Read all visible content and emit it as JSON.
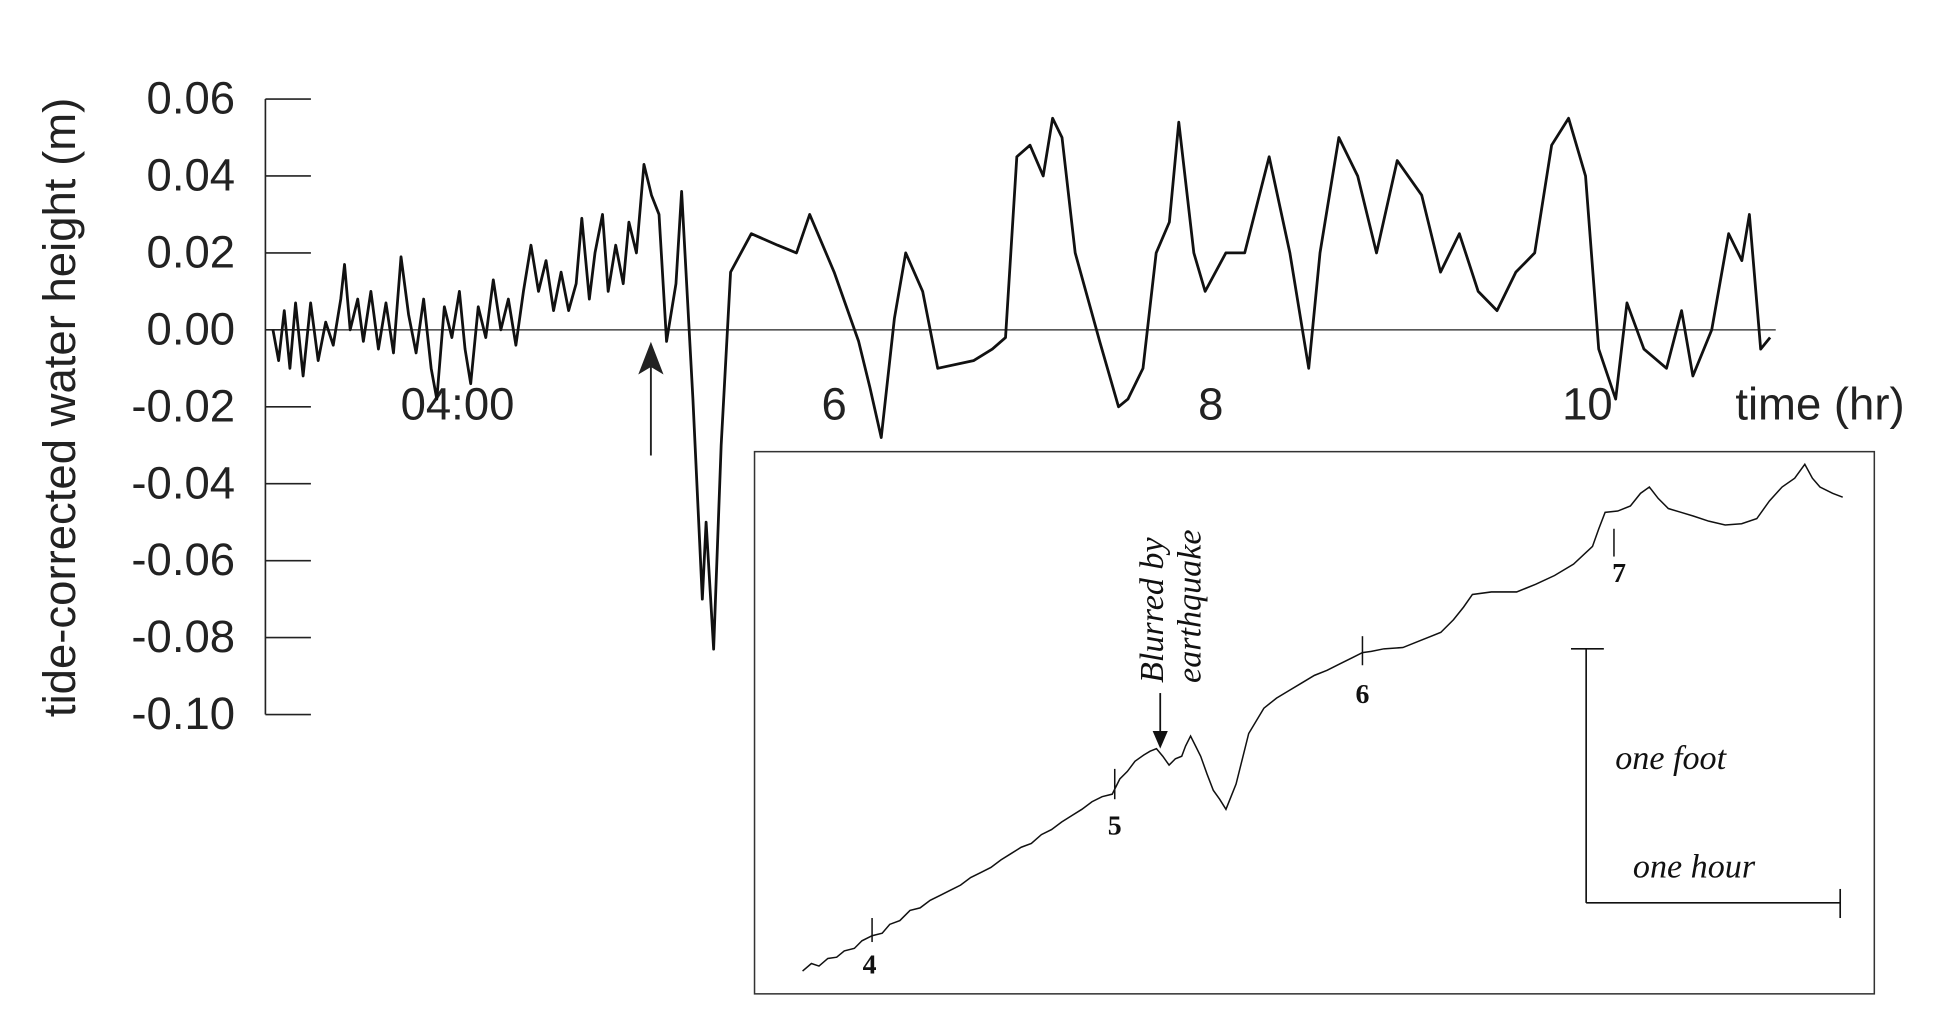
{
  "chart_data": {
    "type": "line",
    "y_label": "tide-corrected water height (m)",
    "x_label": "time (hr)",
    "color": "#111111",
    "xlim": [
      3,
      11
    ],
    "xticks": [
      {
        "value": 4,
        "label": "04:00"
      },
      6,
      8,
      10
    ],
    "ylim": [
      -0.1,
      0.06
    ],
    "yticks": [
      0.06,
      0.04,
      0.02,
      {
        "value": 0,
        "label": "0.00"
      },
      -0.02,
      -0.04,
      -0.06,
      -0.08,
      {
        "value": -0.1,
        "label": "-0.10"
      }
    ],
    "x": [
      3.02,
      3.05,
      3.08,
      3.11,
      3.14,
      3.18,
      3.22,
      3.26,
      3.3,
      3.34,
      3.38,
      3.4,
      3.43,
      3.47,
      3.5,
      3.54,
      3.58,
      3.62,
      3.66,
      3.7,
      3.74,
      3.78,
      3.82,
      3.86,
      3.89,
      3.93,
      3.97,
      4.01,
      4.04,
      4.07,
      4.11,
      4.15,
      4.19,
      4.23,
      4.27,
      4.31,
      4.35,
      4.39,
      4.43,
      4.47,
      4.51,
      4.55,
      4.59,
      4.63,
      4.66,
      4.7,
      4.73,
      4.77,
      4.8,
      4.84,
      4.88,
      4.91,
      4.95,
      4.99,
      5.03,
      5.07,
      5.11,
      5.16,
      5.19,
      5.25,
      5.3,
      5.32,
      5.36,
      5.4,
      5.45,
      5.56,
      5.7,
      5.8,
      5.87,
      6.0,
      6.13,
      6.19,
      6.25,
      6.32,
      6.38,
      6.47,
      6.55,
      6.74,
      6.84,
      6.91,
      6.97,
      7.04,
      7.11,
      7.16,
      7.21,
      7.28,
      7.41,
      7.51,
      7.56,
      7.64,
      7.71,
      7.78,
      7.83,
      7.91,
      7.97,
      8.08,
      8.18,
      8.31,
      8.42,
      8.52,
      8.58,
      8.68,
      8.78,
      8.88,
      8.99,
      9.12,
      9.22,
      9.32,
      9.42,
      9.52,
      9.62,
      9.72,
      9.81,
      9.9,
      9.99,
      10.06,
      10.15,
      10.21,
      10.3,
      10.42,
      10.5,
      10.56,
      10.66,
      10.75,
      10.82,
      10.86,
      10.92,
      10.97
    ],
    "values": [
      0.0,
      -0.008,
      0.005,
      -0.01,
      0.007,
      -0.012,
      0.007,
      -0.008,
      0.002,
      -0.004,
      0.008,
      0.017,
      0.0,
      0.008,
      -0.003,
      0.01,
      -0.005,
      0.007,
      -0.006,
      0.019,
      0.004,
      -0.006,
      0.008,
      -0.01,
      -0.018,
      0.006,
      -0.002,
      0.01,
      -0.005,
      -0.014,
      0.006,
      -0.002,
      0.013,
      0.0,
      0.008,
      -0.004,
      0.01,
      0.022,
      0.01,
      0.018,
      0.005,
      0.015,
      0.005,
      0.012,
      0.029,
      0.008,
      0.02,
      0.03,
      0.01,
      0.022,
      0.012,
      0.028,
      0.02,
      0.043,
      0.035,
      0.03,
      -0.003,
      0.012,
      0.036,
      -0.018,
      -0.07,
      -0.05,
      -0.083,
      -0.03,
      0.015,
      0.025,
      0.022,
      0.02,
      0.03,
      0.015,
      -0.003,
      -0.015,
      -0.028,
      0.003,
      0.02,
      0.01,
      -0.01,
      -0.008,
      -0.005,
      -0.002,
      0.045,
      0.048,
      0.04,
      0.055,
      0.05,
      0.02,
      -0.003,
      -0.02,
      -0.018,
      -0.01,
      0.02,
      0.028,
      0.054,
      0.02,
      0.01,
      0.02,
      0.02,
      0.045,
      0.02,
      -0.01,
      0.02,
      0.05,
      0.04,
      0.02,
      0.044,
      0.035,
      0.015,
      0.025,
      0.01,
      0.005,
      0.015,
      0.02,
      0.048,
      0.055,
      0.04,
      -0.005,
      -0.018,
      0.007,
      -0.005,
      -0.01,
      0.005,
      -0.012,
      0.0,
      0.025,
      0.018,
      0.03,
      -0.005,
      -0.002
    ],
    "inset": {
      "annotation": [
        "Blurred by",
        "earthquake"
      ],
      "hour_labels": [
        "4",
        "5",
        "6",
        "7"
      ],
      "scale_labels": [
        "one foot",
        "one hour"
      ]
    }
  }
}
